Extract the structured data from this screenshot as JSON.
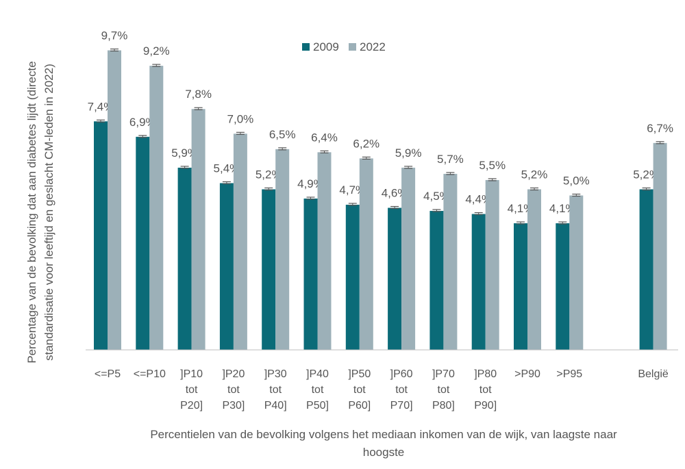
{
  "chart_data": {
    "type": "bar",
    "title": "",
    "xlabel_lines": [
      "Percentielen van de bevolking volgens het mediaan inkomen van de wijk, van laagste naar",
      "hoogste"
    ],
    "ylabel_lines": [
      "Percentage van de bevolking dat aan diabetes lijdt (directe",
      "standardisatie voor leeftijd en geslacht CM-leden in 2022)"
    ],
    "categories": [
      [
        "<=P5"
      ],
      [
        "<=P10"
      ],
      [
        "]P10",
        "tot",
        "P20]"
      ],
      [
        "]P20",
        "tot",
        "P30]"
      ],
      [
        "]P30",
        "tot",
        "P40]"
      ],
      [
        "]P40",
        "tot",
        "P50]"
      ],
      [
        "]P50",
        "tot",
        "P60]"
      ],
      [
        "]P60",
        "tot",
        "P70]"
      ],
      [
        "]P70",
        "tot",
        "P80]"
      ],
      [
        "]P80",
        "tot",
        "P90]"
      ],
      [
        ">P90"
      ],
      [
        ">P95"
      ],
      [
        "België"
      ]
    ],
    "series": [
      {
        "name": "2009",
        "color": "#0b6b78",
        "values": [
          7.4,
          6.9,
          5.9,
          5.4,
          5.2,
          4.9,
          4.7,
          4.6,
          4.5,
          4.4,
          4.1,
          4.1,
          5.2
        ],
        "labels": [
          "7,4%",
          "6,9%",
          "5,9%",
          "5,4%",
          "5,2%",
          "4,9%",
          "4,7%",
          "4,6%",
          "4,5%",
          "4,4%",
          "4,1%",
          "4,1%",
          "5,2%"
        ]
      },
      {
        "name": "2022",
        "color": "#9cb0b8",
        "values": [
          9.7,
          9.2,
          7.8,
          7.0,
          6.5,
          6.4,
          6.2,
          5.9,
          5.7,
          5.5,
          5.2,
          5.0,
          6.7
        ],
        "labels": [
          "9,7%",
          "9,2%",
          "7,8%",
          "7,0%",
          "6,5%",
          "6,4%",
          "6,2%",
          "5,9%",
          "5,7%",
          "5,5%",
          "5,2%",
          "5,0%",
          "6,7%"
        ]
      }
    ],
    "ylim": [
      0,
      10
    ],
    "grid": false,
    "legend_position": "top-center",
    "error_bars": true
  }
}
